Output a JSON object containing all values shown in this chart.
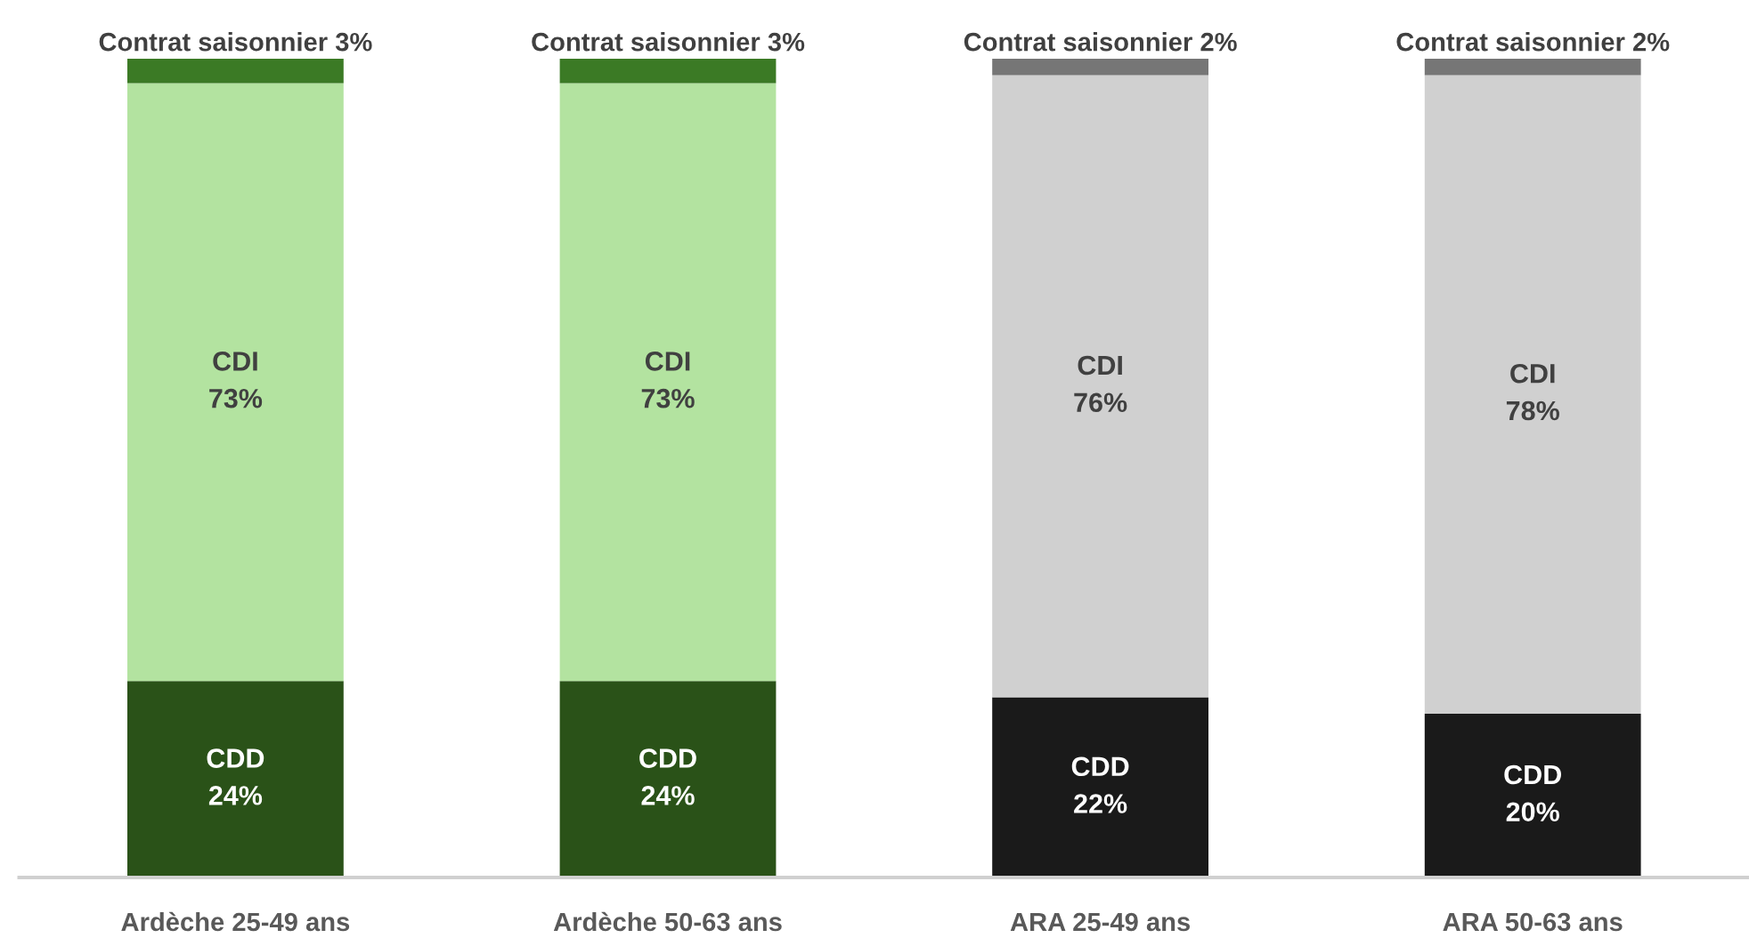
{
  "chart_data": {
    "type": "bar",
    "stacked": true,
    "categories": [
      "Ardèche 25-49 ans",
      "Ardèche 50-63 ans",
      "ARA 25-49 ans",
      "ARA 50-63 ans"
    ],
    "series": [
      {
        "name": "CDD",
        "values": [
          24,
          24,
          22,
          20
        ],
        "colors": [
          "#2a5218",
          "#2a5218",
          "#1a1a1a",
          "#1a1a1a"
        ],
        "value_labels": [
          "24%",
          "24%",
          "22%",
          "20%"
        ]
      },
      {
        "name": "CDI",
        "values": [
          73,
          73,
          76,
          78
        ],
        "colors": [
          "#b3e3a0",
          "#b3e3a0",
          "#d0d0d0",
          "#d0d0d0"
        ],
        "value_labels": [
          "73%",
          "73%",
          "76%",
          "78%"
        ]
      },
      {
        "name": "Contrat saisonnier",
        "values": [
          3,
          3,
          2,
          2
        ],
        "colors": [
          "#3b7a25",
          "#3b7a25",
          "#767676",
          "#767676"
        ],
        "value_labels": [
          "3%",
          "3%",
          "2%",
          "2%"
        ]
      }
    ],
    "ylim": [
      0,
      100
    ],
    "tick_labels": "x",
    "grid": false,
    "legend": false
  }
}
